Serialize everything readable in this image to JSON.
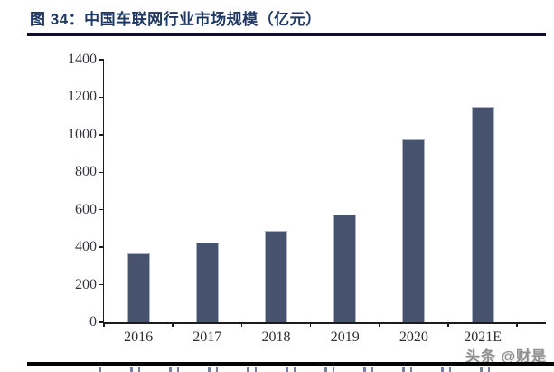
{
  "chart_data": {
    "type": "bar",
    "title": "图 34：中国车联网行业市场规模（亿元）",
    "categories": [
      "2016",
      "2017",
      "2018",
      "2019",
      "2020",
      "2021E"
    ],
    "values": [
      365,
      425,
      490,
      575,
      975,
      1150
    ],
    "xlabel": "",
    "ylabel": "",
    "ylim": [
      0,
      1400
    ],
    "ytick_step": 200,
    "grid": false,
    "legend": "none",
    "bar_color": "#46526e",
    "axis_color": "#1c1c1c"
  },
  "watermark": {
    "text": "头条 @财是"
  },
  "colors": {
    "caption_text": "#1f3864",
    "caption_rule": "#10102a",
    "bottom_rule": "#050505"
  }
}
